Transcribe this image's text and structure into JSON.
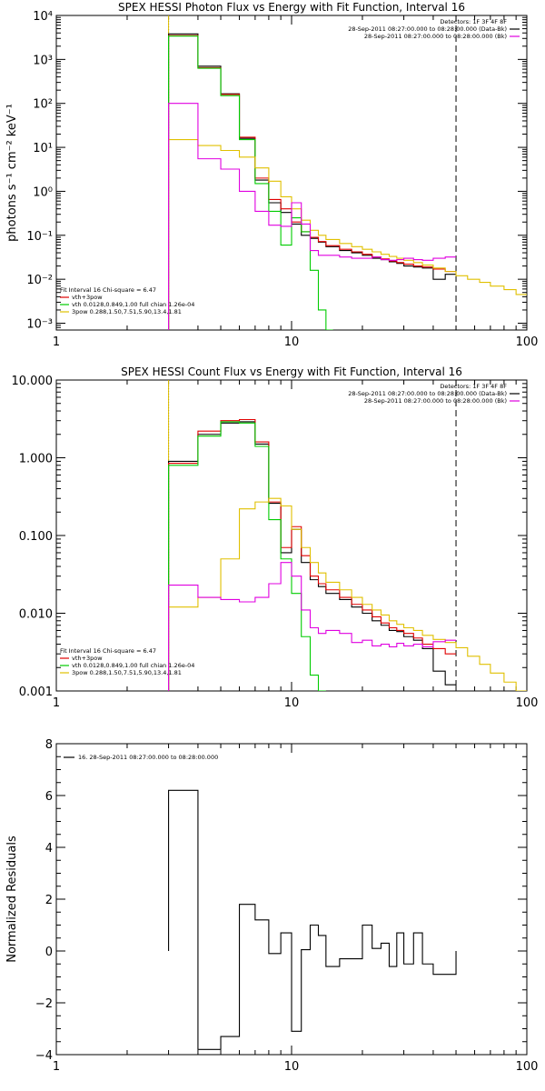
{
  "chart_data": [
    {
      "type": "line",
      "title": "SPEX HESSI Photon Flux vs Energy with Fit Function, Interval 16",
      "xlabel": "",
      "ylabel": "photons s⁻¹ cm⁻² keV⁻¹",
      "xscale": "log",
      "yscale": "log",
      "xlim": [
        1,
        100
      ],
      "ylim": [
        0.0007,
        10000
      ],
      "xticks": [
        {
          "v": 1,
          "label": "1"
        },
        {
          "v": 10,
          "label": "10"
        },
        {
          "v": 100,
          "label": "100"
        }
      ],
      "yticks": [
        {
          "v": 0.001,
          "label": "10⁻³"
        },
        {
          "v": 0.01,
          "label": "10⁻²"
        },
        {
          "v": 0.1,
          "label": "10⁻¹"
        },
        {
          "v": 1,
          "label": "10⁰"
        },
        {
          "v": 10,
          "label": "10¹"
        },
        {
          "v": 100,
          "label": "10²"
        },
        {
          "v": 1000,
          "label": "10³"
        },
        {
          "v": 10000,
          "label": "10⁴"
        }
      ],
      "vlines": [
        {
          "x": 3.0,
          "style": "dotted"
        },
        {
          "x": 3.0,
          "style": "solid",
          "color": "#e0c000"
        },
        {
          "x": 50,
          "style": "dashed"
        }
      ],
      "legend": {
        "position": "top-right",
        "lines": [
          "Detectors: 1F 3F 4F 8F",
          "28-Sep-2011 08:27:00.000 to 08:28:00.000 (Data-Bk)",
          "28-Sep-2011 08:27:00.000 to 08:28:00.000 (Bk)"
        ],
        "colors": [
          "",
          "#000000",
          "#e000e0"
        ]
      },
      "fit_legend": {
        "position": "bottom-left",
        "lines": [
          "Fit Interval 16    Chi-square = 6.47",
          "vth+3pow",
          "vth 0.0128,0.849,1.00  full chian 1.26e-04",
          "3pow 0.288,1.50,7.51,5.90,13.4,1.81"
        ],
        "colors": [
          "#000000",
          "#e00000",
          "#00cc00",
          "#e0c000"
        ]
      },
      "series": [
        {
          "color": "#000000",
          "edges": [
            3.0,
            4.0,
            5.0,
            6.0,
            7.0,
            8.0,
            9.0,
            10.0,
            11.0,
            12.0,
            13.0,
            14.0,
            16.0,
            18.0,
            20.0,
            22.0,
            24.0,
            26.0,
            28.0,
            30.0,
            33.0,
            36.0,
            40.0,
            45.0,
            50.0
          ],
          "values": [
            3800,
            700,
            165,
            16,
            1.8,
            0.55,
            0.33,
            0.18,
            0.1,
            0.085,
            0.07,
            0.055,
            0.045,
            0.04,
            0.035,
            0.03,
            0.028,
            0.025,
            0.023,
            0.02,
            0.019,
            0.018,
            0.01,
            0.013
          ]
        },
        {
          "color": "#e00000",
          "edges": [
            3.0,
            4.0,
            5.0,
            6.0,
            7.0,
            8.0,
            9.0,
            10.0,
            11.0,
            12.0,
            13.0,
            14.0,
            16.0,
            18.0,
            20.0,
            22.0,
            24.0,
            26.0,
            28.0,
            30.0,
            33.0,
            36.0,
            40.0,
            45.0,
            50.0
          ],
          "values": [
            3500,
            650,
            160,
            17,
            2.0,
            0.65,
            0.4,
            0.2,
            0.12,
            0.09,
            0.072,
            0.058,
            0.048,
            0.042,
            0.037,
            0.032,
            0.029,
            0.026,
            0.024,
            0.022,
            0.02,
            0.019,
            0.017,
            0.015
          ]
        },
        {
          "color": "#00cc00",
          "edges": [
            3.0,
            4.0,
            5.0,
            6.0,
            7.0,
            8.0,
            9.0,
            10.0,
            11.0,
            12.0,
            13.0,
            14.0,
            15.0
          ],
          "values": [
            3400,
            630,
            150,
            15,
            1.5,
            0.35,
            0.06,
            0.25,
            0.12,
            0.016,
            0.002,
            0.0007
          ]
        },
        {
          "color": "#e0c000",
          "edges": [
            3.0,
            4.0,
            5.0,
            6.0,
            7.0,
            8.0,
            9.0,
            10.0,
            11.0,
            12.0,
            13.0,
            14.0,
            16.0,
            18.0,
            20.0,
            22.0,
            24.0,
            26.0,
            28.0,
            30.0,
            33.0,
            36.0,
            40.0,
            45.0,
            50.0,
            56.0,
            63.0,
            70.0,
            80.0,
            90.0,
            100.0
          ],
          "values": [
            15,
            11,
            8.5,
            6.0,
            3.4,
            1.7,
            0.75,
            0.4,
            0.22,
            0.13,
            0.1,
            0.08,
            0.065,
            0.055,
            0.048,
            0.042,
            0.037,
            0.033,
            0.03,
            0.027,
            0.024,
            0.021,
            0.018,
            0.015,
            0.012,
            0.01,
            0.0085,
            0.007,
            0.0058,
            0.0045
          ]
        },
        {
          "color": "#e000e0",
          "edges": [
            3.0,
            4.0,
            5.0,
            6.0,
            7.0,
            8.0,
            9.0,
            10.0,
            11.0,
            12.0,
            13.0,
            14.0,
            16.0,
            18.0,
            20.0,
            22.0,
            24.0,
            26.0,
            28.0,
            30.0,
            33.0,
            36.0,
            40.0,
            45.0,
            50.0
          ],
          "values": [
            100,
            5.5,
            3.2,
            1.0,
            0.35,
            0.17,
            0.16,
            0.55,
            0.18,
            0.045,
            0.035,
            0.035,
            0.032,
            0.03,
            0.03,
            0.032,
            0.028,
            0.027,
            0.028,
            0.03,
            0.028,
            0.027,
            0.03,
            0.032
          ]
        }
      ]
    },
    {
      "type": "line",
      "title": "SPEX HESSI Count Flux vs Energy with Fit Function, Interval 16",
      "xlabel": "",
      "ylabel": "",
      "xscale": "log",
      "yscale": "log",
      "xlim": [
        1,
        100
      ],
      "ylim": [
        0.001,
        10
      ],
      "xticks": [
        {
          "v": 1,
          "label": "1"
        },
        {
          "v": 10,
          "label": "10"
        },
        {
          "v": 100,
          "label": "100"
        }
      ],
      "yticks": [
        {
          "v": 0.001,
          "label": "0.001"
        },
        {
          "v": 0.01,
          "label": "0.010"
        },
        {
          "v": 0.1,
          "label": "0.100"
        },
        {
          "v": 1,
          "label": "1.000"
        },
        {
          "v": 10,
          "label": "10.000"
        }
      ],
      "vlines": [
        {
          "x": 3.0,
          "style": "dotted"
        },
        {
          "x": 3.0,
          "style": "solid",
          "color": "#e0c000"
        },
        {
          "x": 50,
          "style": "dashed"
        }
      ],
      "legend": {
        "position": "top-right",
        "lines": [
          "Detectors: 1F 3F 4F 8F",
          "28-Sep-2011 08:27:00.000 to 08:28:00.000 (Data-Bk)",
          "28-Sep-2011 08:27:00.000 to 08:28:00.000 (Bk)"
        ],
        "colors": [
          "",
          "#000000",
          "#e000e0"
        ]
      },
      "fit_legend": {
        "position": "bottom-left",
        "lines": [
          "Fit Interval 16    Chi-square = 6.47",
          "vth+3pow",
          "vth 0.0128,0.849,1.00  full chian 1.26e-04",
          "3pow 0.288,1.50,7.51,5.90,13.4,1.81"
        ],
        "colors": [
          "#000000",
          "#e00000",
          "#00cc00",
          "#e0c000"
        ]
      },
      "series": [
        {
          "color": "#000000",
          "edges": [
            3.0,
            4.0,
            5.0,
            6.0,
            7.0,
            8.0,
            9.0,
            10.0,
            11.0,
            12.0,
            13.0,
            14.0,
            16.0,
            18.0,
            20.0,
            22.0,
            24.0,
            26.0,
            28.0,
            30.0,
            33.0,
            36.0,
            40.0,
            45.0,
            50.0
          ],
          "values": [
            0.9,
            2.0,
            2.8,
            2.9,
            1.5,
            0.26,
            0.06,
            0.12,
            0.045,
            0.027,
            0.022,
            0.018,
            0.015,
            0.012,
            0.01,
            0.008,
            0.007,
            0.006,
            0.0058,
            0.005,
            0.0045,
            0.0035,
            0.0018,
            0.0012
          ]
        },
        {
          "color": "#e00000",
          "edges": [
            3.0,
            4.0,
            5.0,
            6.0,
            7.0,
            8.0,
            9.0,
            10.0,
            11.0,
            12.0,
            13.0,
            14.0,
            16.0,
            18.0,
            20.0,
            22.0,
            24.0,
            26.0,
            28.0,
            30.0,
            33.0,
            36.0,
            40.0,
            45.0,
            50.0
          ],
          "values": [
            0.85,
            2.2,
            3.0,
            3.1,
            1.6,
            0.27,
            0.07,
            0.13,
            0.055,
            0.03,
            0.024,
            0.02,
            0.016,
            0.013,
            0.011,
            0.009,
            0.0075,
            0.0065,
            0.006,
            0.0055,
            0.0048,
            0.004,
            0.0035,
            0.003
          ]
        },
        {
          "color": "#00cc00",
          "edges": [
            3.0,
            4.0,
            5.0,
            6.0,
            7.0,
            8.0,
            9.0,
            10.0,
            11.0,
            12.0,
            13.0,
            14.0
          ],
          "values": [
            0.8,
            1.9,
            2.9,
            2.8,
            1.4,
            0.16,
            0.05,
            0.018,
            0.005,
            0.0016,
            0.001
          ]
        },
        {
          "color": "#e0c000",
          "edges": [
            3.0,
            4.0,
            5.0,
            6.0,
            7.0,
            8.0,
            9.0,
            10.0,
            11.0,
            12.0,
            13.0,
            14.0,
            16.0,
            18.0,
            20.0,
            22.0,
            24.0,
            26.0,
            28.0,
            30.0,
            33.0,
            36.0,
            40.0,
            45.0,
            50.0,
            56.0,
            63.0,
            70.0,
            80.0,
            90.0,
            100.0
          ],
          "values": [
            0.012,
            0.016,
            0.05,
            0.22,
            0.27,
            0.3,
            0.24,
            0.12,
            0.07,
            0.045,
            0.033,
            0.025,
            0.02,
            0.016,
            0.013,
            0.011,
            0.0095,
            0.008,
            0.0072,
            0.0065,
            0.006,
            0.0052,
            0.0046,
            0.0042,
            0.0036,
            0.0028,
            0.0022,
            0.0017,
            0.0013,
            0.001
          ]
        },
        {
          "color": "#e000e0",
          "edges": [
            3.0,
            4.0,
            5.0,
            6.0,
            7.0,
            8.0,
            9.0,
            10.0,
            11.0,
            12.0,
            13.0,
            14.0,
            16.0,
            18.0,
            20.0,
            22.0,
            24.0,
            26.0,
            28.0,
            30.0,
            33.0,
            36.0,
            40.0,
            45.0,
            50.0
          ],
          "values": [
            0.023,
            0.016,
            0.015,
            0.014,
            0.016,
            0.024,
            0.045,
            0.03,
            0.011,
            0.0065,
            0.0055,
            0.006,
            0.0055,
            0.0042,
            0.0045,
            0.0038,
            0.004,
            0.0037,
            0.0041,
            0.0038,
            0.004,
            0.0037,
            0.0043,
            0.0045
          ]
        }
      ]
    },
    {
      "type": "line",
      "title": "",
      "xlabel": "",
      "ylabel": "Normalized Residuals",
      "xscale": "log",
      "yscale": "linear",
      "xlim": [
        1,
        100
      ],
      "ylim": [
        -4,
        8
      ],
      "xticks": [
        {
          "v": 1,
          "label": "1"
        },
        {
          "v": 10,
          "label": "10"
        },
        {
          "v": 100,
          "label": "100"
        }
      ],
      "yticks": [
        {
          "v": -4,
          "label": "−4"
        },
        {
          "v": -2,
          "label": "−2"
        },
        {
          "v": 0,
          "label": "0"
        },
        {
          "v": 2,
          "label": "2"
        },
        {
          "v": 4,
          "label": "4"
        },
        {
          "v": 6,
          "label": "6"
        },
        {
          "v": 8,
          "label": "8"
        }
      ],
      "vlines": [],
      "legend": {
        "position": "top-left",
        "lines": [
          "16. 28-Sep-2011 08:27:00.000 to 08:28:00.000"
        ],
        "colors": [
          "#000000"
        ]
      },
      "series": [
        {
          "color": "#000000",
          "edges": [
            3.0,
            4.0,
            5.0,
            6.0,
            7.0,
            8.0,
            9.0,
            10.0,
            11.0,
            12.0,
            13.0,
            14.0,
            16.0,
            18.0,
            20.0,
            22.0,
            24.0,
            26.0,
            28.0,
            30.0,
            33.0,
            36.0,
            40.0,
            45.0,
            50.0
          ],
          "values": [
            6.2,
            -3.8,
            -3.3,
            1.8,
            1.2,
            -0.1,
            0.7,
            -3.1,
            0.05,
            1.0,
            0.6,
            -0.6,
            -0.3,
            -0.3,
            1.0,
            0.1,
            0.3,
            -0.6,
            0.7,
            -0.5,
            0.7,
            -0.5,
            -0.9,
            -0.9
          ],
          "base": 0
        }
      ]
    }
  ]
}
